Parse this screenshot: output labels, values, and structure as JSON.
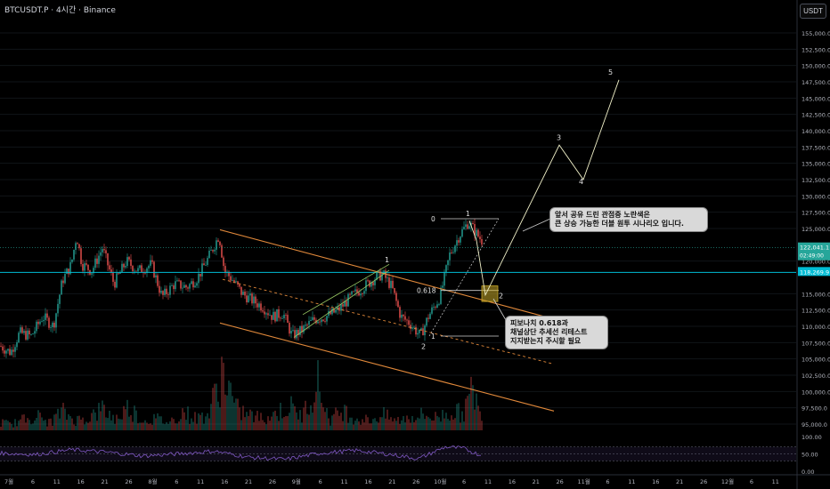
{
  "header": {
    "title": "BTCUSDT.P · 4시간 · Binance",
    "currency": "USDT"
  },
  "chart_data": {
    "type": "candlestick",
    "title": "BTCUSDT.P · 4시간 · Binance",
    "ylim": [
      93500,
      156500
    ],
    "y_ticks": [
      "155,000.0",
      "152,500.0",
      "150,000.0",
      "147,500.0",
      "145,000.0",
      "142,500.0",
      "140,000.0",
      "137,500.0",
      "135,000.0",
      "132,500.0",
      "130,000.0",
      "127,500.0",
      "125,000.0",
      "120,000.0",
      "115,000.0",
      "112,500.0",
      "110,000.0",
      "107,500.0",
      "105,000.0",
      "102,500.0",
      "100,000.0",
      "97,500.0",
      "95,000.0"
    ],
    "x_ticks": [
      "7월",
      "6",
      "11",
      "16",
      "21",
      "26",
      "8월",
      "6",
      "11",
      "16",
      "21",
      "26",
      "9월",
      "6",
      "11",
      "16",
      "21",
      "26",
      "10월",
      "6",
      "11",
      "16",
      "21",
      "26",
      "11월",
      "6",
      "11",
      "16",
      "21",
      "26",
      "12월",
      "6",
      "11"
    ],
    "current_price": {
      "value": "122,041.1",
      "countdown": "02:49:00",
      "color": "#26a69a"
    },
    "level_price": {
      "value": "118,269.9",
      "color": "#00bcd4"
    },
    "price_path": [
      [
        0,
        107000
      ],
      [
        12,
        106000
      ],
      [
        22,
        109000
      ],
      [
        35,
        108500
      ],
      [
        48,
        111500
      ],
      [
        60,
        110000
      ],
      [
        70,
        117000
      ],
      [
        80,
        119500
      ],
      [
        86,
        124000
      ],
      [
        92,
        119500
      ],
      [
        103,
        118500
      ],
      [
        115,
        122000
      ],
      [
        128,
        116500
      ],
      [
        142,
        120000
      ],
      [
        155,
        118500
      ],
      [
        170,
        119500
      ],
      [
        182,
        114500
      ],
      [
        196,
        116500
      ],
      [
        210,
        116000
      ],
      [
        222,
        117500
      ],
      [
        234,
        120500
      ],
      [
        246,
        124000
      ],
      [
        252,
        118500
      ],
      [
        262,
        117000
      ],
      [
        272,
        115000
      ],
      [
        283,
        114000
      ],
      [
        295,
        113000
      ],
      [
        306,
        111500
      ],
      [
        318,
        112000
      ],
      [
        328,
        108500
      ],
      [
        340,
        109500
      ],
      [
        352,
        111000
      ],
      [
        366,
        111500
      ],
      [
        380,
        112500
      ],
      [
        394,
        114500
      ],
      [
        408,
        116000
      ],
      [
        422,
        117500
      ],
      [
        430,
        118000
      ],
      [
        440,
        116000
      ],
      [
        450,
        111500
      ],
      [
        460,
        110500
      ],
      [
        472,
        108500
      ],
      [
        481,
        111500
      ],
      [
        494,
        114500
      ],
      [
        505,
        121000
      ],
      [
        516,
        124000
      ],
      [
        526,
        126000
      ],
      [
        536,
        124000
      ],
      [
        542,
        123000
      ]
    ],
    "volume": [
      [
        0,
        10
      ],
      [
        12,
        7
      ],
      [
        25,
        12
      ],
      [
        40,
        18
      ],
      [
        55,
        9
      ],
      [
        70,
        22
      ],
      [
        85,
        12
      ],
      [
        100,
        15
      ],
      [
        115,
        25
      ],
      [
        130,
        13
      ],
      [
        145,
        28
      ],
      [
        160,
        11
      ],
      [
        175,
        14
      ],
      [
        190,
        9
      ],
      [
        205,
        22
      ],
      [
        220,
        14
      ],
      [
        235,
        20
      ],
      [
        250,
        72
      ],
      [
        265,
        25
      ],
      [
        280,
        18
      ],
      [
        295,
        14
      ],
      [
        310,
        20
      ],
      [
        325,
        28
      ],
      [
        340,
        16
      ],
      [
        355,
        62
      ],
      [
        370,
        12
      ],
      [
        385,
        24
      ],
      [
        400,
        14
      ],
      [
        415,
        12
      ],
      [
        430,
        18
      ],
      [
        445,
        11
      ],
      [
        460,
        16
      ],
      [
        475,
        18
      ],
      [
        490,
        15
      ],
      [
        505,
        22
      ],
      [
        520,
        20
      ],
      [
        532,
        50
      ],
      [
        540,
        12
      ]
    ],
    "rsi": {
      "ylim": [
        0,
        100
      ],
      "levels": [
        70,
        50,
        30
      ],
      "ticks": [
        "100.00",
        "50.00",
        "0.00"
      ],
      "values": [
        [
          0,
          52
        ],
        [
          40,
          48
        ],
        [
          80,
          62
        ],
        [
          120,
          55
        ],
        [
          160,
          44
        ],
        [
          200,
          50
        ],
        [
          240,
          58
        ],
        [
          280,
          40
        ],
        [
          320,
          34
        ],
        [
          360,
          52
        ],
        [
          400,
          60
        ],
        [
          440,
          48
        ],
        [
          470,
          36
        ],
        [
          500,
          70
        ],
        [
          520,
          66
        ],
        [
          540,
          46
        ]
      ]
    },
    "annotations": {
      "fib": [
        {
          "label": "0"
        },
        {
          "label": "1"
        },
        {
          "label": "0.618"
        },
        {
          "label": "1"
        }
      ],
      "waves": [
        "1",
        "2",
        "2",
        "3",
        "4",
        "5"
      ],
      "notes": {
        "top": [
          "앞서 공유 드린 관점중 노란색은",
          "큰 상승 가능한 더블 원투 시나리오 입니다."
        ],
        "fib": [
          "피보나치 0.618과",
          "채널상단 추세선 리테스트",
          "지지받는지 주시할 필요"
        ]
      }
    }
  }
}
